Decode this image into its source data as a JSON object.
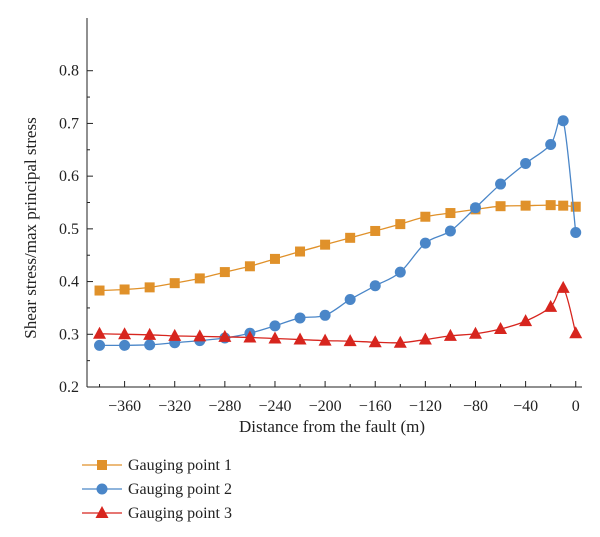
{
  "chart_data": {
    "type": "line",
    "xlabel": "Distance from the fault (m)",
    "ylabel": "Shear stress/max principal stress",
    "xlim": [
      -390,
      5
    ],
    "ylim": [
      0.2,
      0.9
    ],
    "xticks": [
      -360,
      -320,
      -280,
      -240,
      -200,
      -160,
      -120,
      -80,
      -40,
      0
    ],
    "xtick_labels": [
      "−360",
      "−320",
      "−280",
      "−240",
      "−200",
      "−160",
      "−120",
      "−80",
      "−40",
      "0"
    ],
    "yticks": [
      0.2,
      0.3,
      0.4,
      0.5,
      0.6,
      0.7,
      0.8
    ],
    "ytick_labels": [
      "0.2",
      "0.3",
      "0.4",
      "0.5",
      "0.6",
      "0.7",
      "0.8"
    ],
    "grid": false,
    "legend_position": "bottom-left",
    "x": [
      -380,
      -360,
      -340,
      -320,
      -300,
      -280,
      -260,
      -240,
      -220,
      -200,
      -180,
      -160,
      -140,
      -120,
      -100,
      -80,
      -60,
      -40,
      -20,
      -10,
      0
    ],
    "series": [
      {
        "name": "Gauging point 1",
        "marker": "square",
        "color": "#E0912A",
        "values": [
          0.383,
          0.385,
          0.389,
          0.397,
          0.406,
          0.418,
          0.429,
          0.443,
          0.457,
          0.47,
          0.483,
          0.496,
          0.509,
          0.523,
          0.53,
          0.537,
          0.543,
          0.544,
          0.545,
          0.544,
          0.542
        ]
      },
      {
        "name": "Gauging point 2",
        "marker": "circle",
        "color": "#4A86C8",
        "values": [
          0.279,
          0.279,
          0.28,
          0.284,
          0.288,
          0.293,
          0.302,
          0.316,
          0.331,
          0.336,
          0.366,
          0.392,
          0.418,
          0.473,
          0.496,
          0.54,
          0.585,
          0.624,
          0.66,
          0.705,
          0.493
        ]
      },
      {
        "name": "Gauging point 3",
        "marker": "triangle",
        "color": "#D7251E",
        "values": [
          0.301,
          0.3,
          0.299,
          0.297,
          0.296,
          0.295,
          0.294,
          0.292,
          0.29,
          0.288,
          0.287,
          0.285,
          0.284,
          0.29,
          0.297,
          0.301,
          0.31,
          0.325,
          0.352,
          0.388,
          0.302
        ]
      }
    ]
  }
}
